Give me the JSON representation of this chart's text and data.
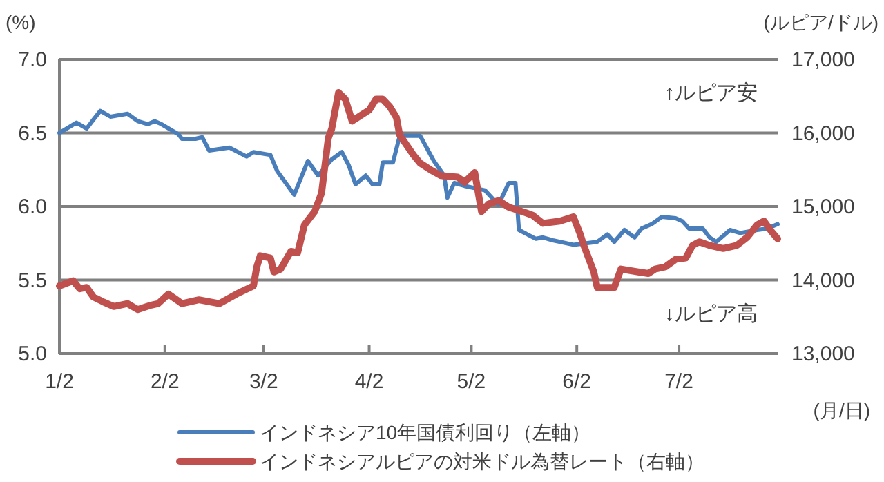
{
  "chart_data": {
    "type": "line",
    "xlabel": "(月/日)",
    "ylabel": "(%)",
    "y2label": "(ルピア/ドル)",
    "annotations": [
      "↑ルピア安",
      "↓ルピア高"
    ],
    "xlim": [
      "--01-02",
      "--07-31"
    ],
    "xticks": [
      {
        "value": "--01-02",
        "label": "1/2"
      },
      {
        "value": "--02-02",
        "label": "2/2"
      },
      {
        "value": "--03-02",
        "label": "3/2"
      },
      {
        "value": "--04-02",
        "label": "4/2"
      },
      {
        "value": "--05-02",
        "label": "5/2"
      },
      {
        "value": "--06-02",
        "label": "6/2"
      },
      {
        "value": "--07-02",
        "label": "7/2"
      }
    ],
    "ylim": [
      5,
      7
    ],
    "yticks": [
      {
        "value": 5,
        "label": "5.0"
      },
      {
        "value": 5.5,
        "label": "5.5"
      },
      {
        "value": 6,
        "label": "6.0"
      },
      {
        "value": 6.5,
        "label": "6.5"
      },
      {
        "value": 7,
        "label": "7.0"
      }
    ],
    "y2lim": [
      13000,
      17000
    ],
    "y2ticks": [
      {
        "value": 13000,
        "label": "13,000"
      },
      {
        "value": 14000,
        "label": "14,000"
      },
      {
        "value": 15000,
        "label": "15,000"
      },
      {
        "value": 16000,
        "label": "16,000"
      },
      {
        "value": 17000,
        "label": "17,000"
      }
    ],
    "grid": "y",
    "legend": "bottom",
    "marker": "none",
    "line_style": "solid",
    "series": [
      {
        "name": "インドネシア10年国債利回り（左軸）",
        "color": "#4a7ebb",
        "x": [
          "--01-02",
          "--01-07",
          "--01-10",
          "--01-12",
          "--01-14",
          "--01-17",
          "--01-22",
          "--01-25",
          "--01-28",
          "--01-30",
          "--02-01",
          "--02-06",
          "--02-07",
          "--02-11",
          "--02-13",
          "--02-15",
          "--02-21",
          "--02-26",
          "--02-28",
          "--03-04",
          "--03-06",
          "--03-11",
          "--03-15",
          "--03-18",
          "--03-22",
          "--03-25",
          "--03-27",
          "--03-29",
          "--04-01",
          "--04-03",
          "--04-05",
          "--04-06",
          "--04-09",
          "--04-11",
          "--04-17",
          "--04-21",
          "--04-24",
          "--04-25",
          "--04-27",
          "--04-30",
          "--05-06",
          "--05-10",
          "--05-13",
          "--05-15",
          "--05-16",
          "--05-21",
          "--05-23",
          "--05-26",
          "--06-01",
          "--06-08",
          "--06-11",
          "--06-13",
          "--06-16",
          "--06-19",
          "--06-21",
          "--06-24",
          "--06-27",
          "--07-01",
          "--07-03",
          "--07-05",
          "--07-09",
          "--07-11",
          "--07-13",
          "--07-17",
          "--07-20",
          "--07-25",
          "--07-28",
          "--07-31"
        ],
        "values": [
          6.5,
          6.57,
          6.53,
          6.59,
          6.65,
          6.61,
          6.63,
          6.58,
          6.56,
          6.58,
          6.56,
          6.49,
          6.46,
          6.46,
          6.47,
          6.38,
          6.4,
          6.34,
          6.37,
          6.35,
          6.24,
          6.08,
          6.31,
          6.21,
          6.32,
          6.37,
          6.28,
          6.15,
          6.21,
          6.15,
          6.15,
          6.3,
          6.3,
          6.48,
          6.48,
          6.31,
          6.21,
          6.06,
          6.16,
          6.14,
          6.11,
          6.01,
          6.16,
          6.16,
          5.84,
          5.78,
          5.79,
          5.77,
          5.74,
          5.76,
          5.81,
          5.76,
          5.84,
          5.79,
          5.85,
          5.88,
          5.93,
          5.92,
          5.9,
          5.85,
          5.85,
          5.79,
          5.76,
          5.84,
          5.82,
          5.84,
          5.85,
          5.88
        ]
      },
      {
        "name": "インドネシアルピアの対米ドル為替レート（右軸）",
        "color": "#c0504d",
        "axis": "y2",
        "x": [
          "--01-02",
          "--01-06",
          "--01-08",
          "--01-10",
          "--01-12",
          "--01-15",
          "--01-18",
          "--01-22",
          "--01-25",
          "--01-29",
          "--01-31",
          "--02-03",
          "--02-07",
          "--02-12",
          "--02-18",
          "--02-23",
          "--02-28",
          "--02-29",
          "--03-01",
          "--03-04",
          "--03-05",
          "--03-07",
          "--03-10",
          "--03-12",
          "--03-14",
          "--03-17",
          "--03-19",
          "--03-21",
          "--03-22",
          "--03-24",
          "--03-26",
          "--03-28",
          "--03-31",
          "--04-02",
          "--04-04",
          "--04-06",
          "--04-08",
          "--04-10",
          "--04-11",
          "--04-15",
          "--04-17",
          "--04-20",
          "--04-23",
          "--04-28",
          "--04-30",
          "--05-03",
          "--05-05",
          "--05-07",
          "--05-10",
          "--05-13",
          "--05-17",
          "--05-20",
          "--05-23",
          "--05-28",
          "--06-01",
          "--06-03",
          "--06-04",
          "--06-07",
          "--06-08",
          "--06-13",
          "--06-15",
          "--06-20",
          "--06-23",
          "--06-25",
          "--06-28",
          "--07-01",
          "--07-04",
          "--07-06",
          "--07-08",
          "--07-11",
          "--07-15",
          "--07-19",
          "--07-22",
          "--07-25",
          "--07-27",
          "--07-29",
          "--07-31"
        ],
        "values": [
          13920,
          13990,
          13880,
          13900,
          13770,
          13700,
          13640,
          13680,
          13600,
          13660,
          13680,
          13810,
          13680,
          13730,
          13680,
          13810,
          13920,
          14180,
          14330,
          14300,
          14110,
          14150,
          14390,
          14370,
          14750,
          14930,
          15180,
          15930,
          16060,
          16550,
          16460,
          16160,
          16250,
          16310,
          16460,
          16460,
          16360,
          16210,
          15970,
          15700,
          15590,
          15500,
          15420,
          15400,
          15330,
          15460,
          14930,
          15030,
          15080,
          14990,
          14930,
          14880,
          14770,
          14800,
          14860,
          14620,
          14480,
          14110,
          13900,
          13900,
          14150,
          14110,
          14090,
          14150,
          14180,
          14280,
          14300,
          14470,
          14520,
          14470,
          14430,
          14470,
          14580,
          14750,
          14800,
          14670,
          14560
        ]
      }
    ]
  }
}
